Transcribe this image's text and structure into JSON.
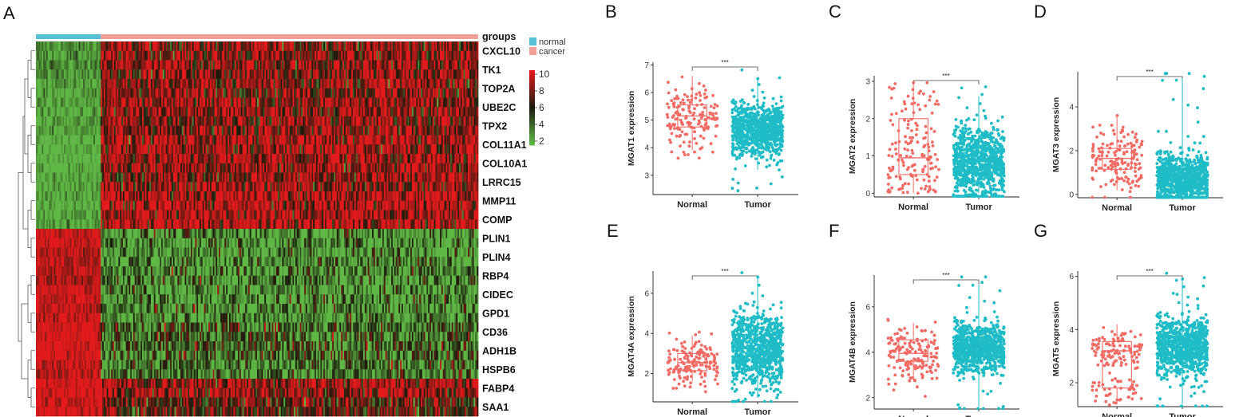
{
  "colors": {
    "normal": "#f26b64",
    "tumor": "#1fbcc6",
    "bar_normal": "#56c0d6",
    "bar_cancer": "#f4a09a",
    "heat_low": "#5fb845",
    "heat_mid": "#1b1b0e",
    "heat_high": "#e31a1c"
  },
  "chart_data": [
    {
      "panel": "A",
      "type": "heatmap",
      "groups_label": "groups",
      "groups_legend": [
        "normal",
        "cancer"
      ],
      "group_fraction_normal": 0.148,
      "genes": [
        "CXCL10",
        "TK1",
        "TOP2A",
        "UBE2C",
        "TPX2",
        "COL11A1",
        "COL10A1",
        "LRRC15",
        "MMP11",
        "COMP",
        "PLIN1",
        "PLIN4",
        "RBP4",
        "CIDEC",
        "GPD1",
        "CD36",
        "ADH1B",
        "HSPB6",
        "FABP4",
        "SAA1"
      ],
      "normal_means": [
        3,
        3,
        2.5,
        2.5,
        2.6,
        2,
        2,
        2.2,
        2.4,
        2.6,
        9.6,
        9.2,
        9,
        9.5,
        9.3,
        10,
        10,
        9.4,
        10,
        9.8
      ],
      "cancer_means": [
        8,
        8.2,
        8.2,
        8.2,
        8.2,
        8.8,
        8.6,
        8.4,
        9.2,
        9,
        3,
        3,
        3.4,
        3,
        3.2,
        4.5,
        4.2,
        3.8,
        8.5,
        7
      ],
      "color_scale": {
        "min": 2,
        "max": 10,
        "ticks": [
          10,
          8,
          6,
          4,
          2
        ]
      }
    },
    {
      "panel": "B",
      "type": "box",
      "ylabel": "MGAT1 expression",
      "categories": [
        "Normal",
        "Tumor"
      ],
      "ylim": [
        2.3,
        7.1
      ],
      "yticks": [
        3,
        4,
        5,
        6,
        7
      ],
      "significance": "***",
      "n": [
        160,
        900
      ],
      "boxes": [
        {
          "q1": 4.75,
          "median": 5.15,
          "q3": 5.55,
          "low": 3.9,
          "high": 6.6
        },
        {
          "q1": 4.35,
          "median": 4.65,
          "q3": 5.0,
          "low": 3.2,
          "high": 6.5
        }
      ]
    },
    {
      "panel": "C",
      "type": "box",
      "ylabel": "MGAT2 expression",
      "categories": [
        "Normal",
        "Tumor"
      ],
      "ylim": [
        -0.1,
        3.15
      ],
      "yticks": [
        0,
        1,
        2,
        3
      ],
      "significance": "***",
      "n": [
        160,
        900
      ],
      "boxes": [
        {
          "q1": 0.5,
          "median": 0.95,
          "q3": 2.0,
          "low": 0.0,
          "high": 3.0
        },
        {
          "q1": 0.55,
          "median": 0.85,
          "q3": 1.2,
          "low": 0.0,
          "high": 2.6
        }
      ]
    },
    {
      "panel": "D",
      "type": "box",
      "ylabel": "MGAT3 expression",
      "categories": [
        "Normal",
        "Tumor"
      ],
      "ylim": [
        -0.15,
        5.6
      ],
      "yticks": [
        0,
        2,
        4
      ],
      "significance": "***",
      "n": [
        160,
        900
      ],
      "boxes": [
        {
          "q1": 1.15,
          "median": 1.65,
          "q3": 2.1,
          "low": 0.2,
          "high": 3.6
        },
        {
          "q1": 0.35,
          "median": 0.7,
          "q3": 1.1,
          "low": 0.0,
          "high": 5.3
        }
      ]
    },
    {
      "panel": "E",
      "type": "box",
      "ylabel": "MGAT4A expression",
      "categories": [
        "Normal",
        "Tumor"
      ],
      "ylim": [
        0.6,
        7.1
      ],
      "yticks": [
        2,
        4,
        6
      ],
      "significance": "***",
      "n": [
        160,
        900
      ],
      "boxes": [
        {
          "q1": 2.15,
          "median": 2.55,
          "q3": 3.0,
          "low": 1.6,
          "high": 3.9
        },
        {
          "q1": 2.7,
          "median": 3.25,
          "q3": 3.95,
          "low": 0.8,
          "high": 6.8
        }
      ]
    },
    {
      "panel": "F",
      "type": "box",
      "ylabel": "MGAT4B expression",
      "categories": [
        "Normal",
        "Tumor"
      ],
      "ylim": [
        1.5,
        7.4
      ],
      "yticks": [
        2,
        4,
        6
      ],
      "significance": "***",
      "n": [
        160,
        900
      ],
      "boxes": [
        {
          "q1": 3.6,
          "median": 3.95,
          "q3": 4.55,
          "low": 2.8,
          "high": 5.3
        },
        {
          "q1": 3.85,
          "median": 4.2,
          "q3": 4.55,
          "low": 1.6,
          "high": 7.0
        }
      ]
    },
    {
      "panel": "G",
      "type": "box",
      "ylabel": "MGAT5 expression",
      "categories": [
        "Normal",
        "Tumor"
      ],
      "ylim": [
        1.1,
        6.2
      ],
      "yticks": [
        2,
        4,
        6
      ],
      "significance": "***",
      "n": [
        160,
        900
      ],
      "boxes": [
        {
          "q1": 1.8,
          "median": 3.2,
          "q3": 3.55,
          "low": 1.2,
          "high": 4.2
        },
        {
          "q1": 2.95,
          "median": 3.35,
          "q3": 3.7,
          "low": 1.2,
          "high": 5.9
        }
      ]
    }
  ]
}
